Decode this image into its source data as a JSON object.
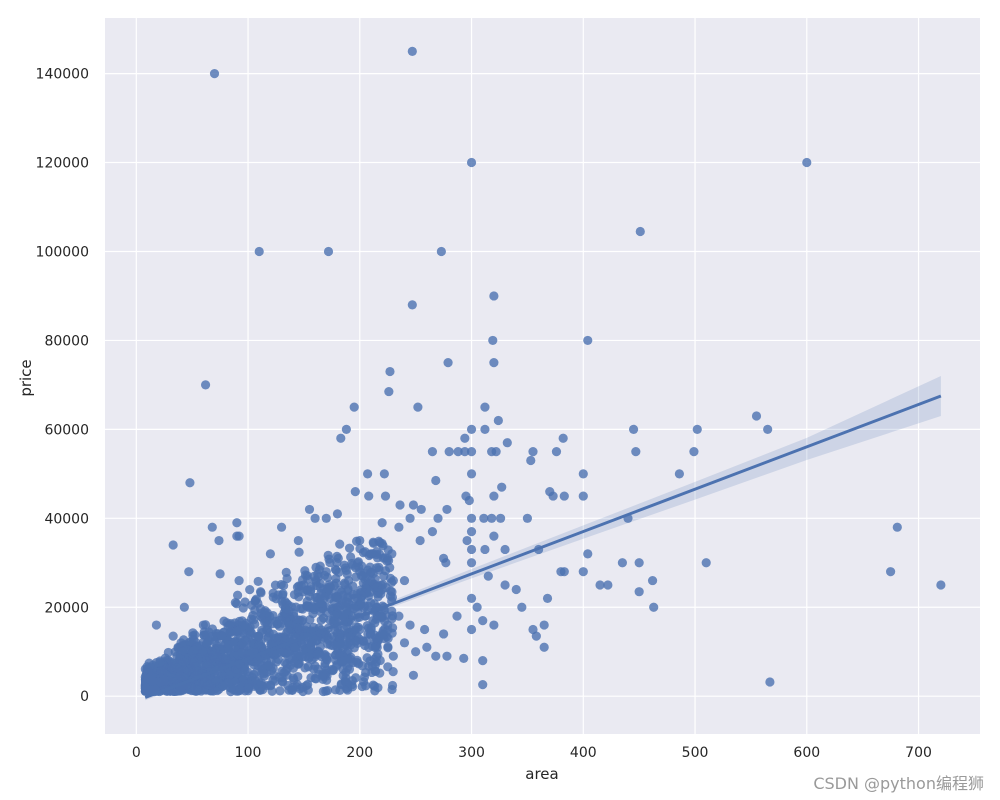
{
  "chart_data": {
    "type": "scatter",
    "title": "",
    "xlabel": "area",
    "ylabel": "price",
    "xlim": [
      -28,
      755
    ],
    "ylim": [
      -8500,
      152500
    ],
    "xticks": [
      0,
      100,
      200,
      300,
      400,
      500,
      600,
      700
    ],
    "yticks": [
      0,
      20000,
      40000,
      60000,
      80000,
      100000,
      120000,
      140000
    ],
    "grid": true,
    "legend": "none",
    "colors": {
      "background": "#eaeaf2",
      "grid": "#ffffff",
      "points": "#4c72b0",
      "line": "#4c72b0",
      "ci_band": "#4c72b0"
    },
    "points": [
      [
        70,
        140000
      ],
      [
        247,
        145000
      ],
      [
        300,
        120000
      ],
      [
        600,
        120000
      ],
      [
        451,
        104500
      ],
      [
        110,
        100000
      ],
      [
        172,
        100000
      ],
      [
        273,
        100000
      ],
      [
        247,
        88000
      ],
      [
        320,
        90000
      ],
      [
        404,
        80000
      ],
      [
        319,
        80000
      ],
      [
        62,
        70000
      ],
      [
        227,
        73000
      ],
      [
        279,
        75000
      ],
      [
        320,
        75000
      ],
      [
        226,
        68500
      ],
      [
        195,
        65000
      ],
      [
        252,
        65000
      ],
      [
        312,
        65000
      ],
      [
        324,
        62000
      ],
      [
        555,
        63000
      ],
      [
        565,
        60000
      ],
      [
        188,
        60000
      ],
      [
        312,
        60000
      ],
      [
        300,
        60000
      ],
      [
        445,
        60000
      ],
      [
        502,
        60000
      ],
      [
        183,
        58000
      ],
      [
        294,
        58000
      ],
      [
        382,
        58000
      ],
      [
        265,
        55000
      ],
      [
        280,
        55000
      ],
      [
        288,
        55000
      ],
      [
        294,
        55000
      ],
      [
        300,
        55000
      ],
      [
        318,
        55000
      ],
      [
        322,
        55000
      ],
      [
        355,
        55000
      ],
      [
        376,
        55000
      ],
      [
        447,
        55000
      ],
      [
        499,
        55000
      ],
      [
        332,
        57000
      ],
      [
        353,
        53000
      ],
      [
        222,
        50000
      ],
      [
        207,
        50000
      ],
      [
        300,
        50000
      ],
      [
        400,
        50000
      ],
      [
        486,
        50000
      ],
      [
        268,
        48500
      ],
      [
        196,
        46000
      ],
      [
        208,
        45000
      ],
      [
        223,
        45000
      ],
      [
        295,
        45000
      ],
      [
        320,
        45000
      ],
      [
        373,
        45000
      ],
      [
        383,
        45000
      ],
      [
        400,
        45000
      ],
      [
        48,
        48000
      ],
      [
        298,
        44000
      ],
      [
        236,
        43000
      ],
      [
        248,
        43000
      ],
      [
        255,
        42000
      ],
      [
        278,
        42000
      ],
      [
        327,
        47000
      ],
      [
        370,
        46000
      ],
      [
        300,
        40000
      ],
      [
        311,
        40000
      ],
      [
        318,
        40000
      ],
      [
        326,
        40000
      ],
      [
        350,
        40000
      ],
      [
        440,
        40000
      ],
      [
        270,
        40000
      ],
      [
        245,
        40000
      ],
      [
        220,
        39000
      ],
      [
        160,
        40000
      ],
      [
        170,
        40000
      ],
      [
        180,
        41000
      ],
      [
        155,
        42000
      ],
      [
        90,
        39000
      ],
      [
        68,
        38000
      ],
      [
        130,
        38000
      ],
      [
        681,
        38000
      ],
      [
        235,
        38000
      ],
      [
        265,
        37000
      ],
      [
        300,
        37000
      ],
      [
        320,
        36000
      ],
      [
        90,
        36000
      ],
      [
        74,
        35000
      ],
      [
        33,
        34000
      ],
      [
        145,
        35000
      ],
      [
        200,
        35000
      ],
      [
        254,
        35000
      ],
      [
        296,
        35000
      ],
      [
        330,
        33000
      ],
      [
        360,
        33000
      ],
      [
        404,
        32000
      ],
      [
        120,
        32000
      ],
      [
        210,
        32000
      ],
      [
        225,
        31000
      ],
      [
        275,
        31000
      ],
      [
        300,
        33000
      ],
      [
        312,
        33000
      ],
      [
        277,
        30000
      ],
      [
        300,
        30000
      ],
      [
        435,
        30000
      ],
      [
        450,
        30000
      ],
      [
        510,
        30000
      ],
      [
        47,
        28000
      ],
      [
        75,
        27500
      ],
      [
        675,
        28000
      ],
      [
        720,
        25000
      ],
      [
        380,
        28000
      ],
      [
        383,
        28000
      ],
      [
        400,
        28000
      ],
      [
        415,
        25000
      ],
      [
        422,
        25000
      ],
      [
        462,
        26000
      ],
      [
        450,
        23500
      ],
      [
        463,
        20000
      ],
      [
        315,
        27000
      ],
      [
        330,
        25000
      ],
      [
        340,
        24000
      ],
      [
        300,
        22000
      ],
      [
        368,
        22000
      ],
      [
        345,
        20000
      ],
      [
        305,
        20000
      ],
      [
        287,
        18000
      ],
      [
        310,
        17000
      ],
      [
        300,
        15000
      ],
      [
        275,
        14000
      ],
      [
        258,
        15000
      ],
      [
        320,
        16000
      ],
      [
        355,
        15000
      ],
      [
        365,
        16000
      ],
      [
        358,
        13500
      ],
      [
        365,
        11000
      ],
      [
        293,
        8500
      ],
      [
        310,
        8000
      ],
      [
        278,
        9000
      ],
      [
        268,
        9000
      ],
      [
        250,
        10000
      ],
      [
        248,
        4700
      ],
      [
        212,
        2500
      ],
      [
        310,
        2600
      ],
      [
        567,
        3200
      ],
      [
        92,
        26000
      ],
      [
        92,
        36000
      ],
      [
        43,
        20000
      ],
      [
        33,
        13500
      ],
      [
        40,
        12000
      ],
      [
        60,
        16000
      ],
      [
        18,
        16000
      ],
      [
        150,
        25000
      ],
      [
        170,
        28000
      ],
      [
        190,
        26000
      ],
      [
        200,
        28000
      ],
      [
        210,
        26000
      ],
      [
        220,
        24000
      ],
      [
        230,
        26000
      ],
      [
        240,
        26000
      ],
      [
        180,
        20000
      ],
      [
        195,
        22000
      ],
      [
        205,
        18000
      ],
      [
        215,
        20000
      ],
      [
        225,
        16000
      ],
      [
        235,
        18000
      ],
      [
        245,
        16000
      ],
      [
        165,
        19000
      ],
      [
        240,
        12000
      ],
      [
        260,
        11000
      ],
      [
        230,
        9000
      ],
      [
        220,
        14000
      ],
      [
        200,
        15000
      ],
      [
        190,
        12000
      ],
      [
        185,
        8000
      ],
      [
        175,
        6000
      ],
      [
        160,
        4000
      ],
      [
        140,
        2000
      ],
      [
        120,
        2500
      ],
      [
        100,
        2800
      ],
      [
        85,
        3000
      ],
      [
        65,
        2500
      ],
      [
        45,
        2500
      ]
    ],
    "dense_cluster": {
      "x_range": [
        8,
        230
      ],
      "y_range": [
        1000,
        35000
      ],
      "count": 1700
    },
    "regression": {
      "x": [
        8,
        720
      ],
      "y": [
        -300,
        67500
      ]
    },
    "ci_band": {
      "x": [
        8,
        100,
        200,
        300,
        400,
        500,
        600,
        720
      ],
      "lower": [
        -900,
        7900,
        17400,
        26500,
        35400,
        44200,
        53100,
        63000
      ],
      "upper": [
        300,
        8900,
        18600,
        28600,
        38400,
        48200,
        58100,
        72000
      ]
    }
  },
  "watermark": "CSDN @python编程狮"
}
